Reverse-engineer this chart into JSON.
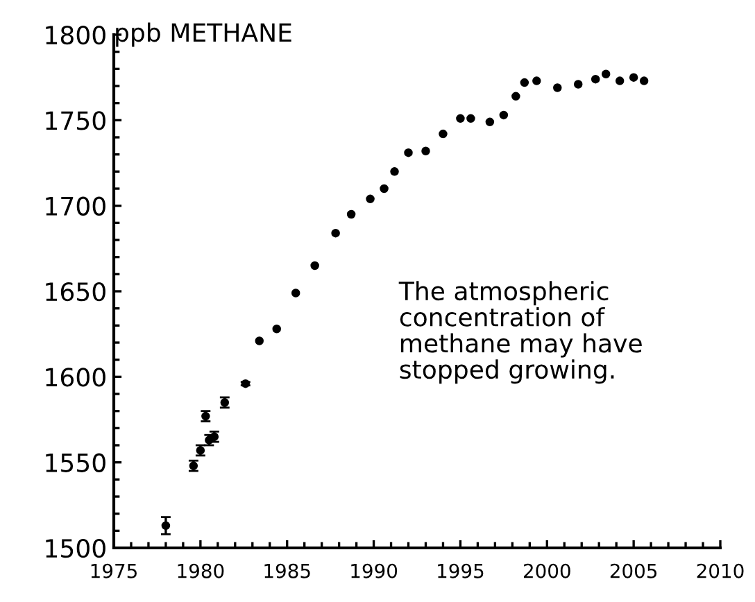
{
  "chart_data": {
    "type": "scatter",
    "ylabel": "ppb METHANE",
    "annotations": [
      "The atmospheric\nconcentration of\nmethane may have\nstopped growing."
    ],
    "xlim": [
      1975,
      2010
    ],
    "xticks": [
      1975,
      1980,
      1985,
      1990,
      1995,
      2000,
      2005,
      2010
    ],
    "ylim": [
      1500,
      1800
    ],
    "yticks": [
      1500,
      1550,
      1600,
      1650,
      1700,
      1750,
      1800
    ],
    "grid": false,
    "legend": false,
    "marker": "circle",
    "series": [
      {
        "color": "#000000",
        "x": [
          1978.0,
          1979.6,
          1980.0,
          1980.3,
          1980.5,
          1980.8,
          1981.4,
          1982.6
        ],
        "values": [
          1513,
          1548,
          1557,
          1577,
          1563,
          1565,
          1585,
          1596
        ],
        "errors": [
          5,
          3,
          3,
          3,
          3,
          3,
          3,
          1
        ]
      },
      {
        "color": "#000000",
        "x": [
          1983.4,
          1984.4,
          1985.5,
          1986.6,
          1987.8,
          1988.7,
          1989.8,
          1990.6,
          1991.2,
          1992.0,
          1993.0,
          1994.0,
          1995.0,
          1995.6,
          1996.7,
          1997.5,
          1998.2,
          1998.7,
          1999.4,
          2000.6,
          2001.8,
          2002.8,
          2003.4,
          2004.2,
          2005.0,
          2005.6
        ],
        "values": [
          1621,
          1628,
          1649,
          1665,
          1684,
          1695,
          1704,
          1710,
          1720,
          1731,
          1732,
          1742,
          1751,
          1751,
          1749,
          1753,
          1764,
          1772,
          1773,
          1769,
          1771,
          1774,
          1777,
          1773,
          1775,
          1773
        ]
      }
    ]
  }
}
